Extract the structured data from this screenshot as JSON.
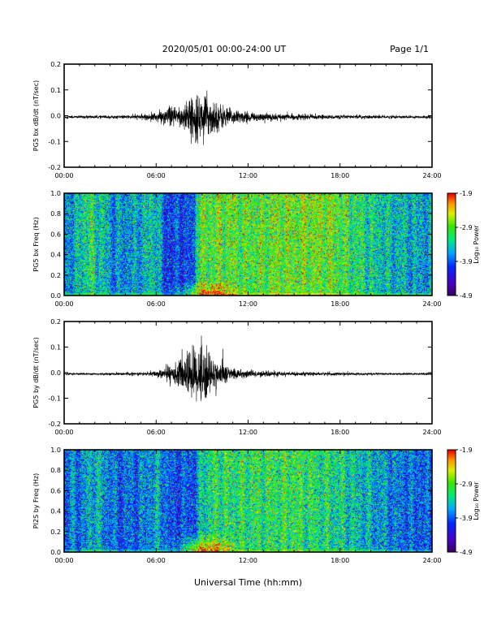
{
  "header": {
    "title": "2020/05/01  00:00-24:00 UT",
    "page": "Page 1/1"
  },
  "chart_data": [
    {
      "type": "line",
      "id": "bx-wave",
      "ylabel": "PG5 bx dB/dt (nT/sec)",
      "xlabel": "",
      "x_ticks": [
        "00:00",
        "06:00",
        "12:00",
        "18:00",
        "24:00"
      ],
      "y_ticks": [
        "-0.2",
        "-0.1",
        "0.0",
        "0.1",
        "0.2"
      ],
      "xlim": [
        0,
        24
      ],
      "ylim": [
        -0.2,
        0.2
      ],
      "series": [
        {
          "envelope_hours": [
            0,
            2,
            4,
            5.5,
            6.5,
            7.5,
            8,
            8.5,
            9,
            9.5,
            10,
            11,
            12,
            13,
            14,
            15,
            16,
            18,
            20,
            22,
            24
          ],
          "envelope_amplitude": [
            0.006,
            0.006,
            0.007,
            0.012,
            0.03,
            0.05,
            0.07,
            0.085,
            0.09,
            0.08,
            0.06,
            0.03,
            0.02,
            0.015,
            0.015,
            0.012,
            0.01,
            0.008,
            0.007,
            0.006,
            0.006
          ],
          "offset": -0.005
        }
      ]
    },
    {
      "type": "heatmap",
      "id": "bx-spec",
      "ylabel": "PG5 bx Freq (Hz)",
      "xlabel": "",
      "x_ticks": [
        "00:00",
        "06:00",
        "12:00",
        "18:00",
        "24:00"
      ],
      "y_ticks": [
        "0.0",
        "0.2",
        "0.4",
        "0.6",
        "0.8",
        "1.0"
      ],
      "xlim": [
        0,
        24
      ],
      "ylim": [
        0,
        1.0
      ],
      "colorbar": {
        "label": "Log₁₀ Power",
        "ticks": [
          "-1.9",
          "-2.9",
          "-3.9",
          "-4.9"
        ],
        "range": [
          -4.9,
          -1.9
        ]
      },
      "column_level_hours": [
        0,
        0.3,
        0.6,
        1.0,
        1.8,
        2.2,
        2.8,
        3.2,
        4.5,
        6.0,
        6.5,
        8.5,
        8.6,
        10,
        12,
        14,
        16,
        17.5,
        19,
        21,
        24
      ],
      "column_level_power": [
        -3.9,
        -3.6,
        -3.8,
        -3.4,
        -3.2,
        -3.4,
        -3.6,
        -3.8,
        -3.7,
        -3.4,
        -4.1,
        -4.1,
        -3.1,
        -2.9,
        -3.0,
        -2.9,
        -2.85,
        -2.9,
        -3.2,
        -3.5,
        -3.7
      ],
      "low_freq_peak": {
        "center_hour": 9.5,
        "width_hours": 2.0,
        "max_freq": 0.1,
        "peak_power": -1.9
      }
    },
    {
      "type": "line",
      "id": "by-wave",
      "ylabel": "PG5 by dB/dt (nT/sec)",
      "xlabel": "",
      "x_ticks": [
        "00:00",
        "06:00",
        "12:00",
        "18:00",
        "24:00"
      ],
      "y_ticks": [
        "-0.2",
        "-0.1",
        "0.0",
        "0.1",
        "0.2"
      ],
      "xlim": [
        0,
        24
      ],
      "ylim": [
        -0.2,
        0.2
      ],
      "series": [
        {
          "envelope_hours": [
            0,
            2,
            4,
            5.5,
            6.5,
            7.5,
            8,
            8.5,
            9,
            9.5,
            10,
            11,
            12,
            13,
            14,
            15,
            16,
            18,
            20,
            22,
            24
          ],
          "envelope_amplitude": [
            0.004,
            0.004,
            0.005,
            0.008,
            0.02,
            0.05,
            0.09,
            0.12,
            0.13,
            0.09,
            0.05,
            0.025,
            0.015,
            0.012,
            0.01,
            0.008,
            0.007,
            0.006,
            0.005,
            0.004,
            0.004
          ],
          "offset": -0.005
        }
      ]
    },
    {
      "type": "heatmap",
      "id": "by-spec",
      "ylabel": "PI2S by Freq (Hz)",
      "xlabel": "Universal Time (hh:mm)",
      "x_ticks": [
        "00:00",
        "06:00",
        "12:00",
        "18:00",
        "24:00"
      ],
      "y_ticks": [
        "0.0",
        "0.2",
        "0.4",
        "0.6",
        "0.8",
        "1.0"
      ],
      "xlim": [
        0,
        24
      ],
      "ylim": [
        0,
        1.0
      ],
      "colorbar": {
        "label": "Log₁₀ Power",
        "ticks": [
          "-1.9",
          "-2.9",
          "-3.9",
          "-4.9"
        ],
        "range": [
          -4.9,
          -1.9
        ]
      },
      "column_level_hours": [
        0,
        0.5,
        1.0,
        2.0,
        2.5,
        3.5,
        5.0,
        6.0,
        7.0,
        8.5,
        9.0,
        10,
        12,
        14,
        15,
        16,
        18,
        20,
        22,
        24
      ],
      "column_level_power": [
        -4.0,
        -3.8,
        -3.9,
        -3.5,
        -3.7,
        -4.0,
        -3.9,
        -3.6,
        -4.1,
        -4.0,
        -3.4,
        -3.2,
        -3.2,
        -3.15,
        -3.1,
        -3.2,
        -3.35,
        -3.6,
        -3.9,
        -4.0
      ],
      "low_freq_peak": {
        "center_hour": 9.3,
        "width_hours": 2.0,
        "max_freq": 0.12,
        "peak_power": -1.9
      }
    }
  ]
}
